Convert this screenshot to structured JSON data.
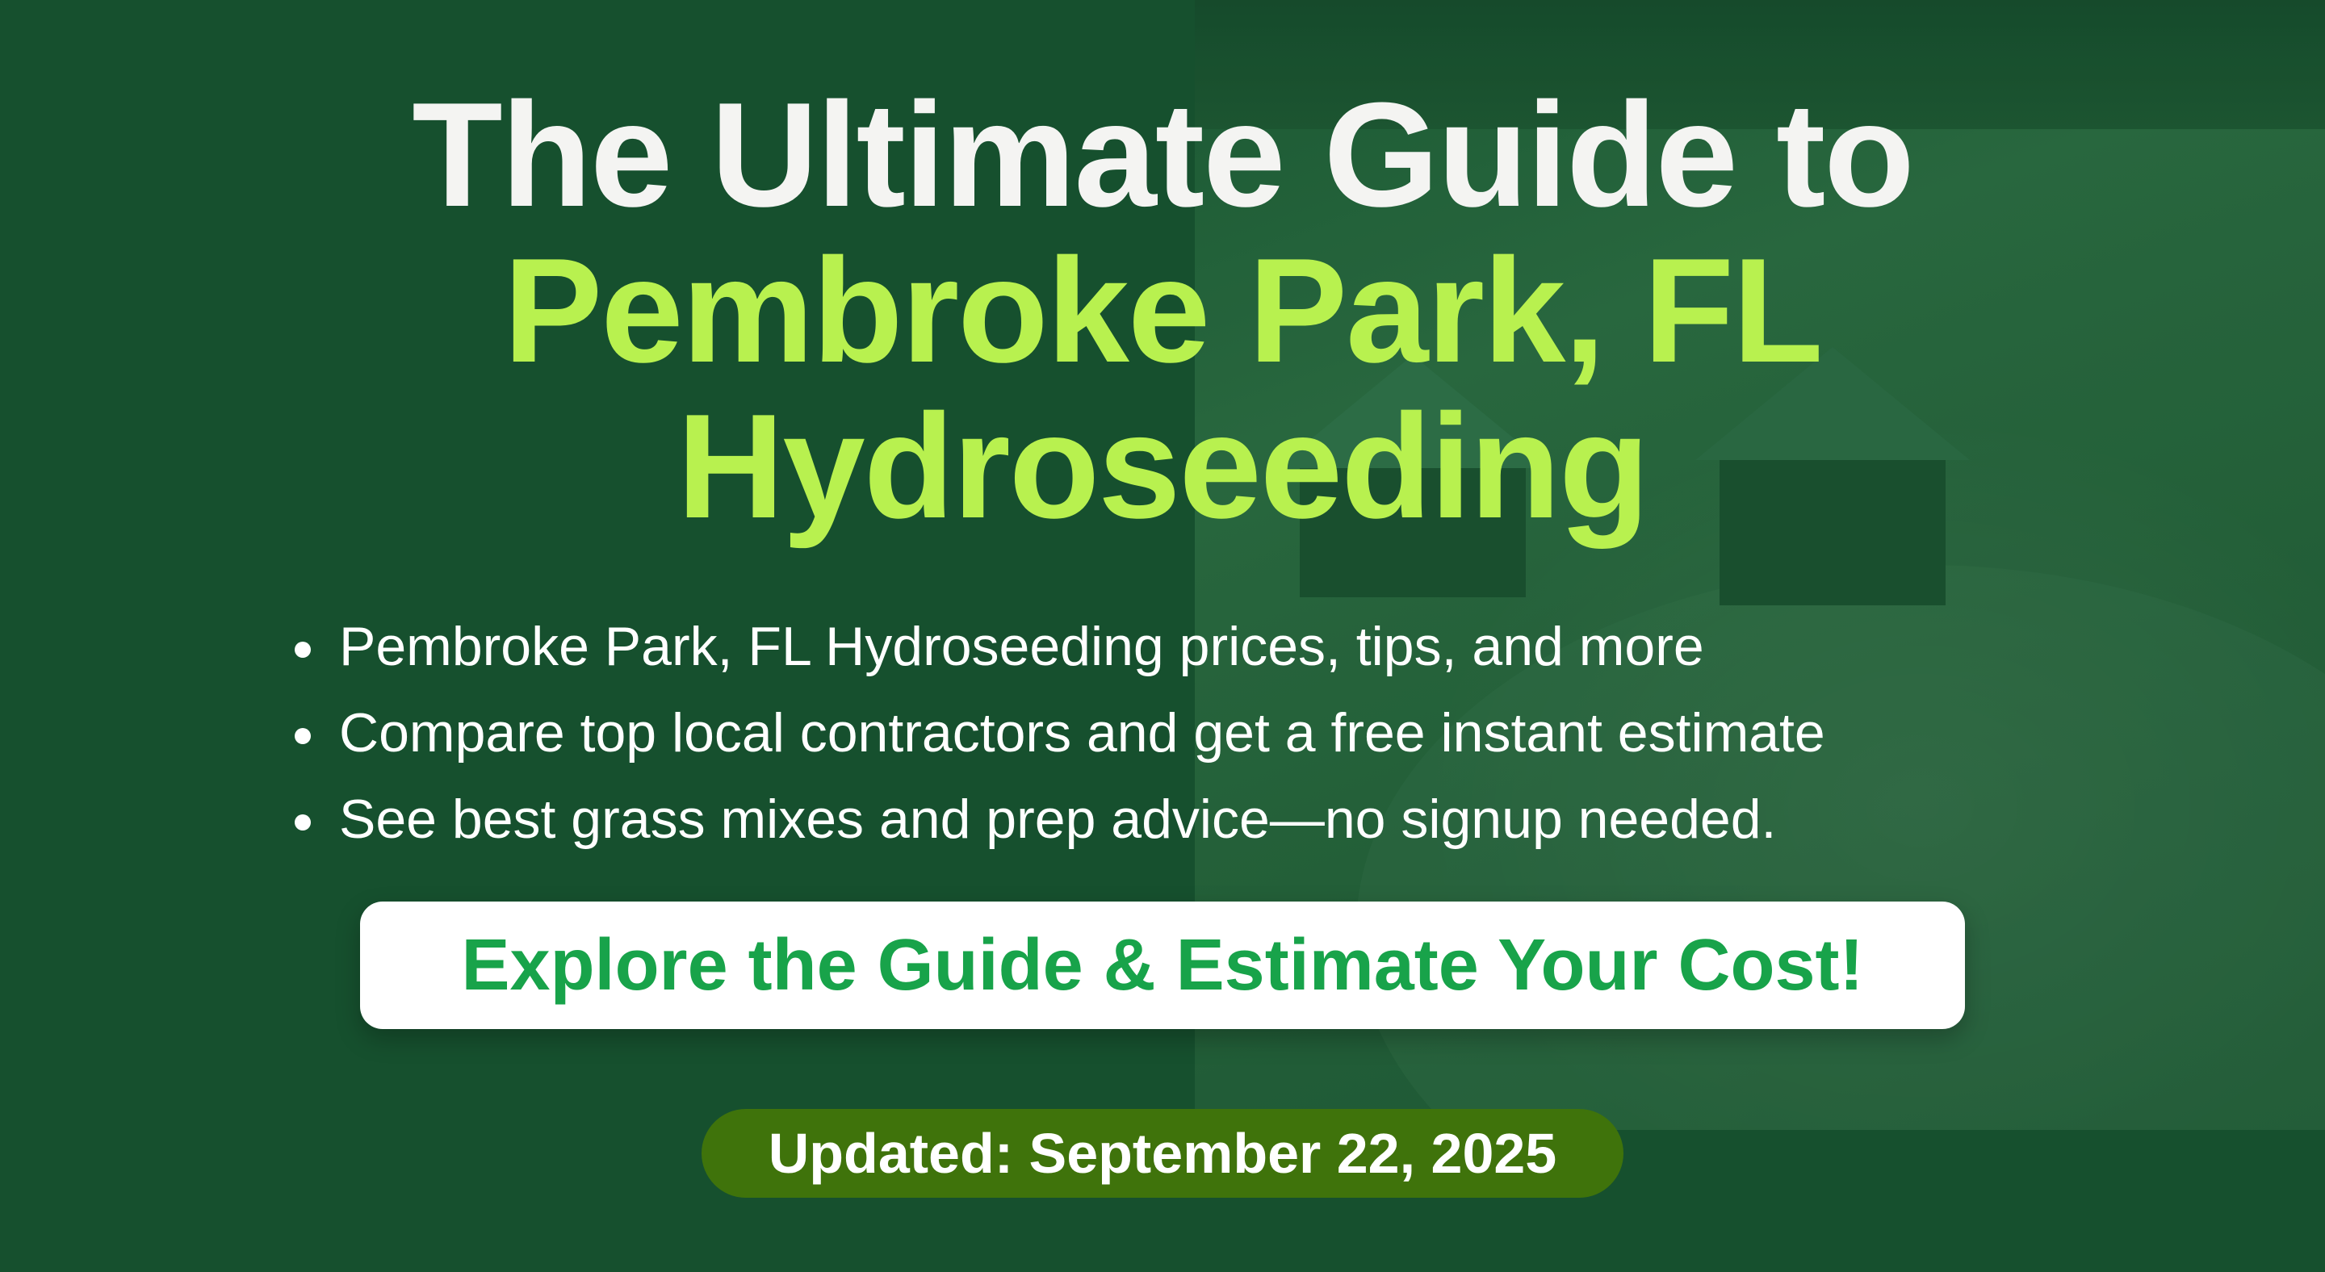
{
  "hero": {
    "title_line1": "The Ultimate Guide to",
    "title_line2": "Pembroke Park, FL",
    "title_line3": "Hydroseeding"
  },
  "bullets": [
    "Pembroke Park, FL Hydroseeding prices, tips, and more",
    "Compare top local contractors and get a free instant estimate",
    "See best grass mixes and prep advice—no signup needed."
  ],
  "cta": {
    "label": "Explore the Guide & Estimate Your Cost!"
  },
  "updated_badge": {
    "label": "Updated: September 22, 2025"
  },
  "colors": {
    "background": "#16502e",
    "title_white": "#f4f4f2",
    "title_accent": "#b8f14f",
    "cta_text": "#18a34a",
    "badge": "#3f730b"
  }
}
